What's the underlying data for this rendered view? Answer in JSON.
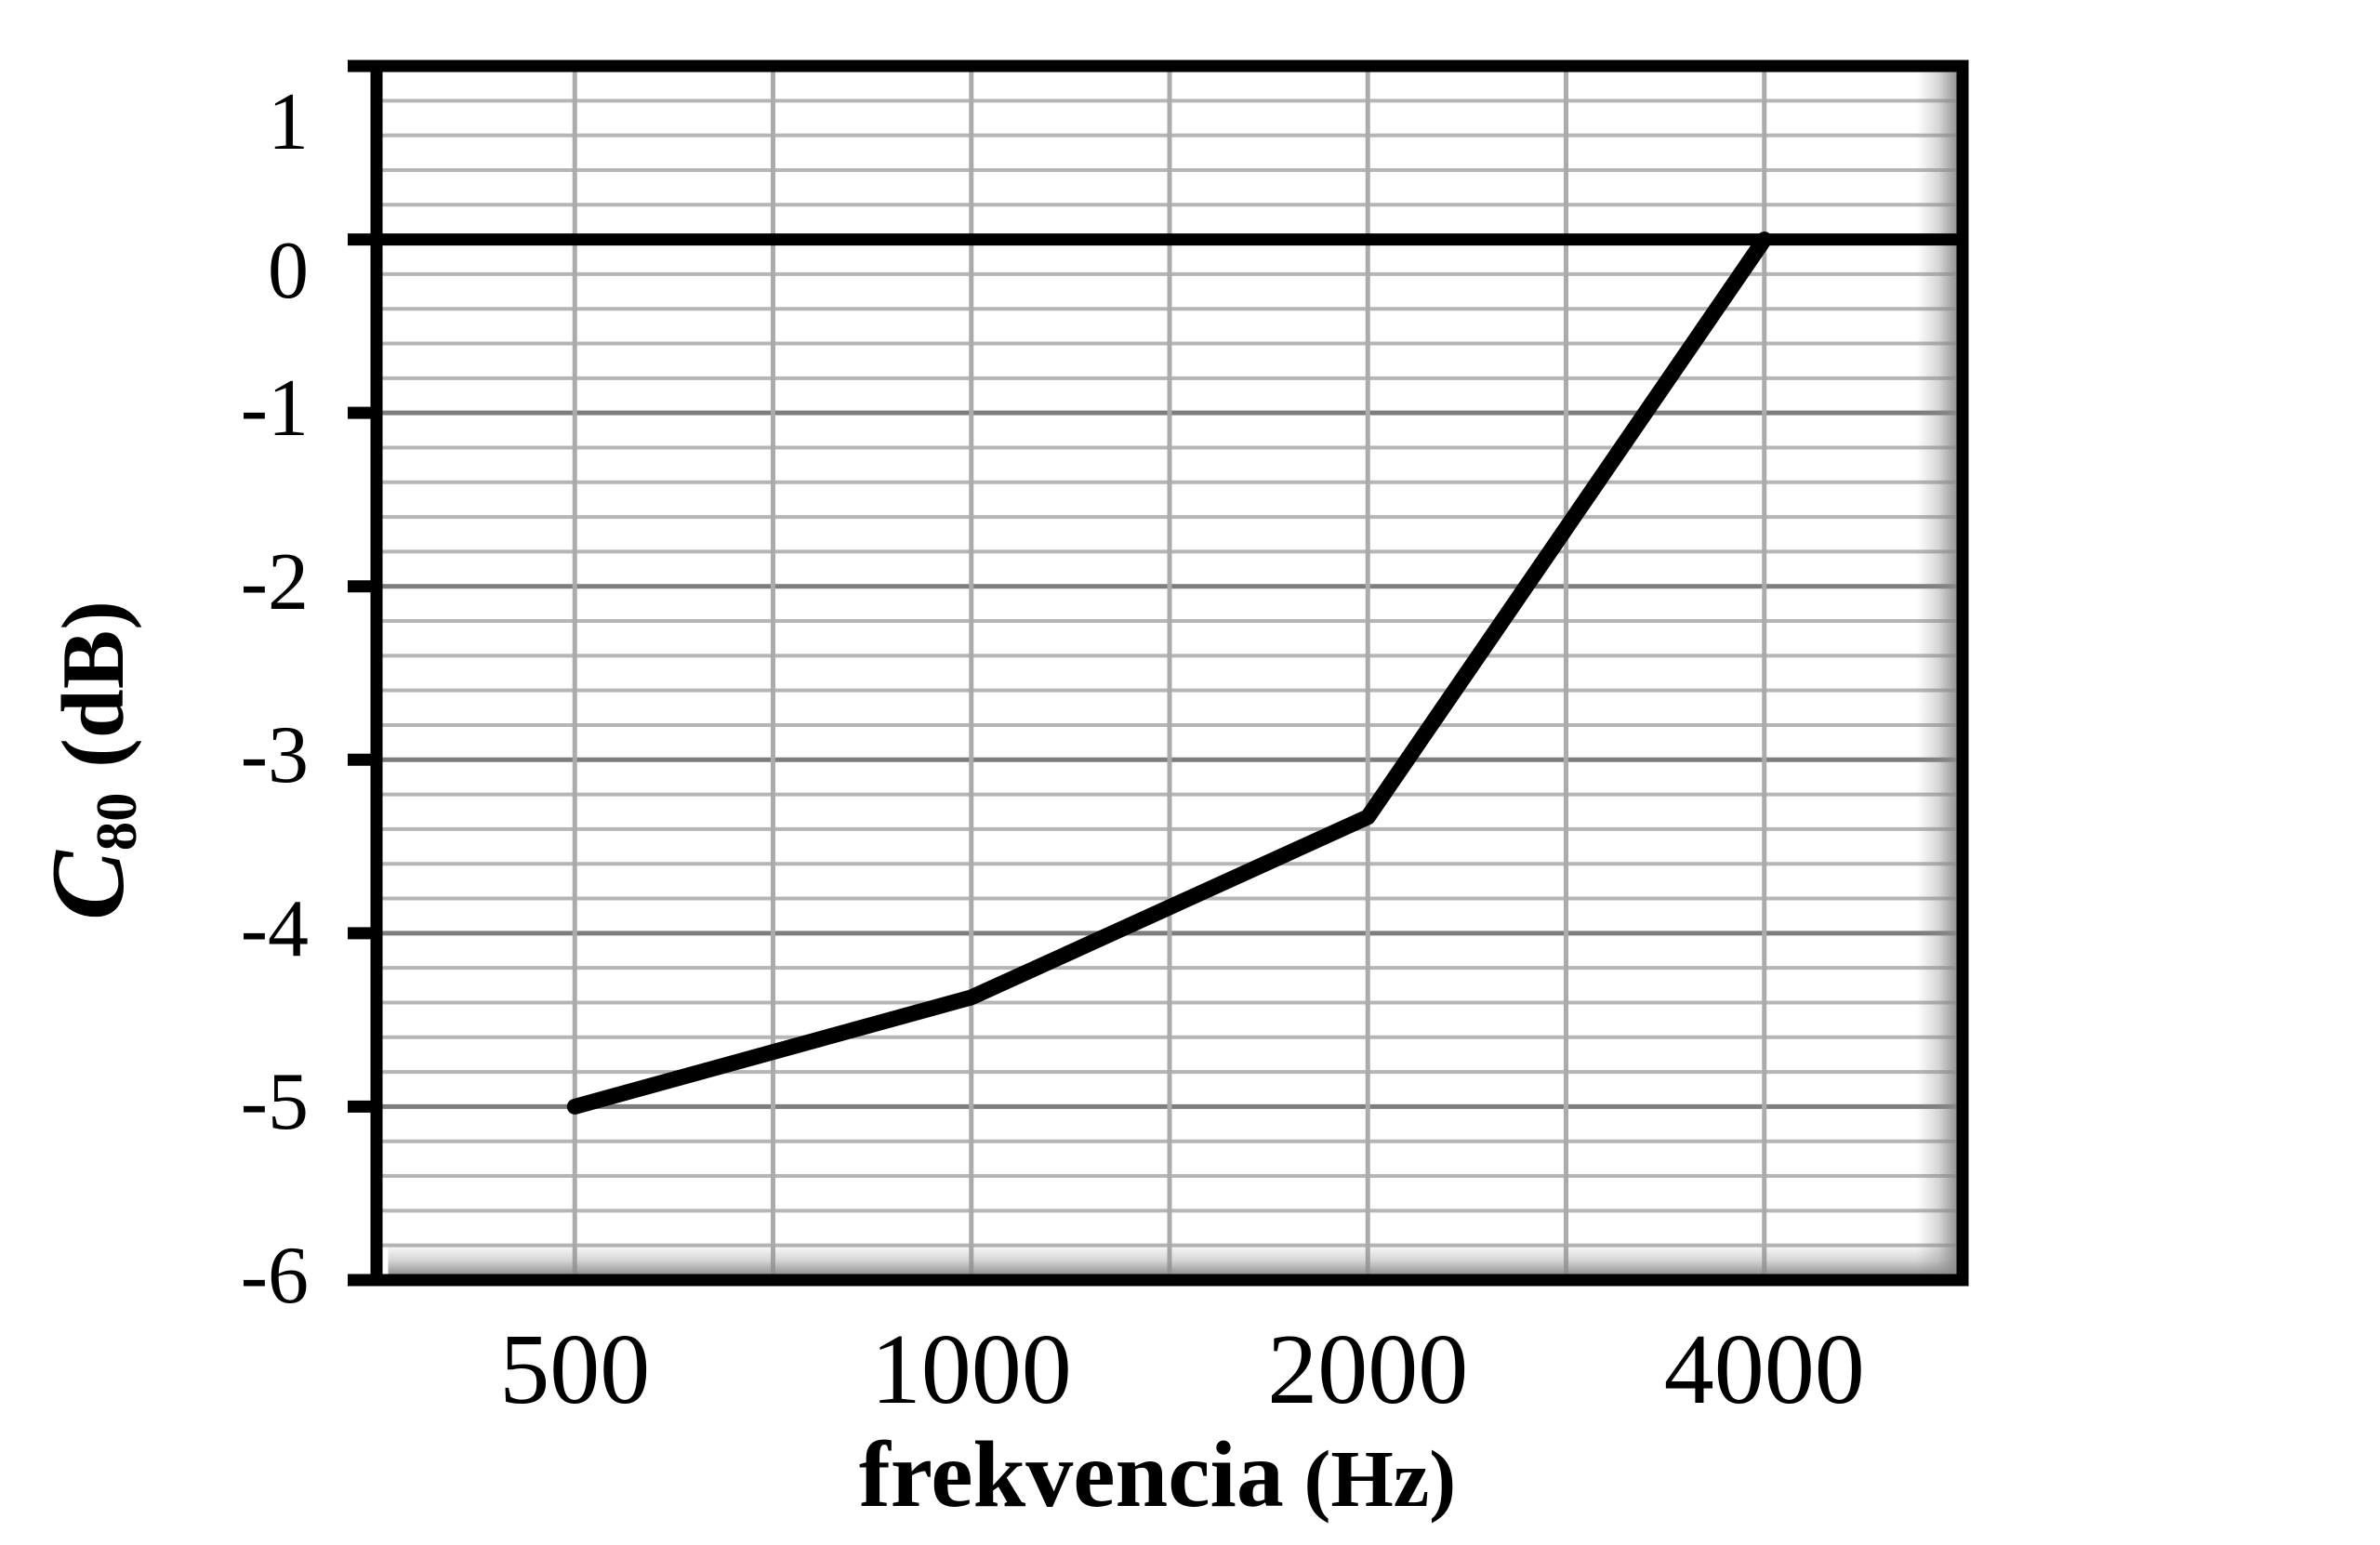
{
  "figure": {
    "background": "#ffffff"
  },
  "chart_data": {
    "type": "line",
    "title": "",
    "categories": [
      "500",
      "1000",
      "2000",
      "4000"
    ],
    "series": [
      {
        "name": "C80",
        "values": [
          -5.0,
          -4.37,
          -3.33,
          0.0
        ]
      }
    ],
    "xlabel": "frekvencia (Hz)",
    "ylabel": "C80 (dB)",
    "xlabel_parts": {
      "main": "frekvencia",
      "unit": "(Hz)"
    },
    "ylabel_parts": {
      "main": "C",
      "sub": "80",
      "unit": "(dB)"
    },
    "x_tick_labels": [
      "500",
      "1000",
      "2000",
      "4000"
    ],
    "y_tick_labels": [
      "1",
      "0",
      "-1",
      "-2",
      "-3",
      "-4",
      "-5",
      "-6"
    ],
    "ylim": [
      -6,
      1
    ],
    "y_major_step": 1,
    "y_minor_step": 0.2,
    "x_axis_crosses_at": 0,
    "grid": {
      "horizontal_minor": true,
      "horizontal_major": true,
      "vertical": "half-category-interval"
    },
    "legend_position": "none",
    "style": {
      "line_color": "#000000",
      "axis_color": "#000000",
      "grid_minor_color": "#b5b5b5",
      "grid_major_color": "#7d7d7d",
      "grid_vertical_color": "#ababab",
      "shadow_color": "#8a8a8a",
      "text_color": "#000000",
      "background": "#ffffff"
    }
  }
}
